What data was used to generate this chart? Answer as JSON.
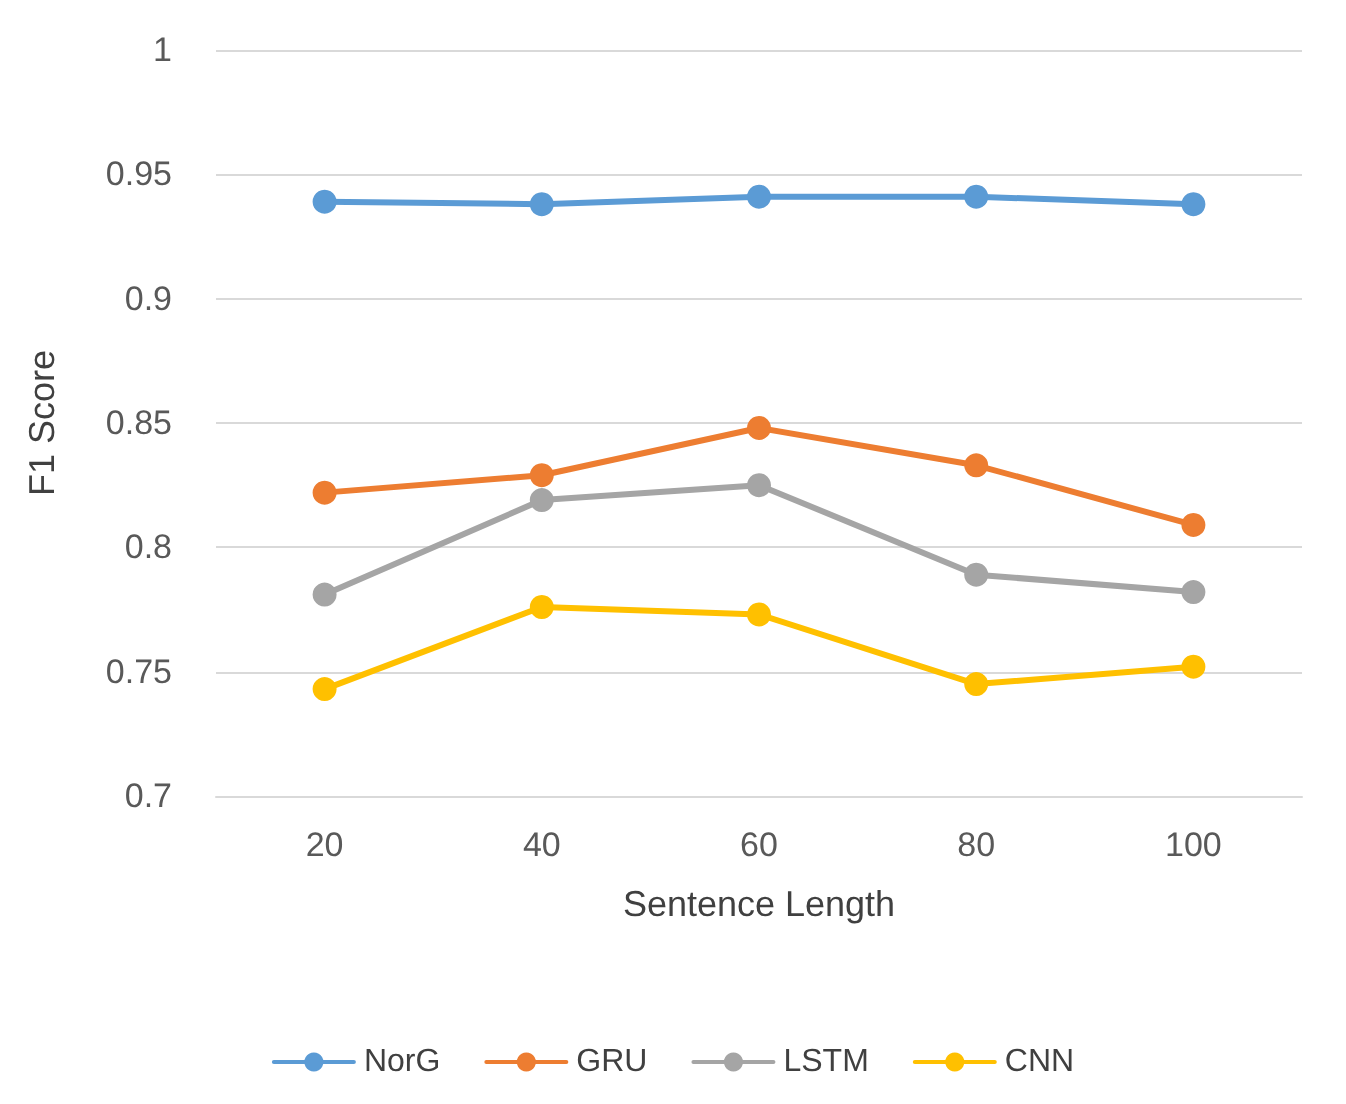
{
  "chart_data": {
    "type": "line",
    "xlabel": "Sentence Length",
    "ylabel": "F1 Score",
    "categories": [
      "20",
      "40",
      "60",
      "80",
      "100"
    ],
    "series": [
      {
        "name": "NorG",
        "color": "#5b9bd5",
        "values": [
          0.939,
          0.938,
          0.941,
          0.941,
          0.938
        ]
      },
      {
        "name": "GRU",
        "color": "#ed7d31",
        "values": [
          0.822,
          0.829,
          0.848,
          0.833,
          0.809
        ]
      },
      {
        "name": "LSTM",
        "color": "#a5a5a5",
        "values": [
          0.781,
          0.819,
          0.825,
          0.789,
          0.782
        ]
      },
      {
        "name": "CNN",
        "color": "#ffc000",
        "values": [
          0.743,
          0.776,
          0.773,
          0.745,
          0.752
        ]
      }
    ],
    "ylim": [
      0.7,
      1
    ],
    "yticks": [
      0.7,
      0.75,
      0.8,
      0.85,
      0.9,
      0.95,
      1
    ],
    "grid": "y",
    "legend": "bottom",
    "marker": "circle",
    "line_style": "solid"
  }
}
